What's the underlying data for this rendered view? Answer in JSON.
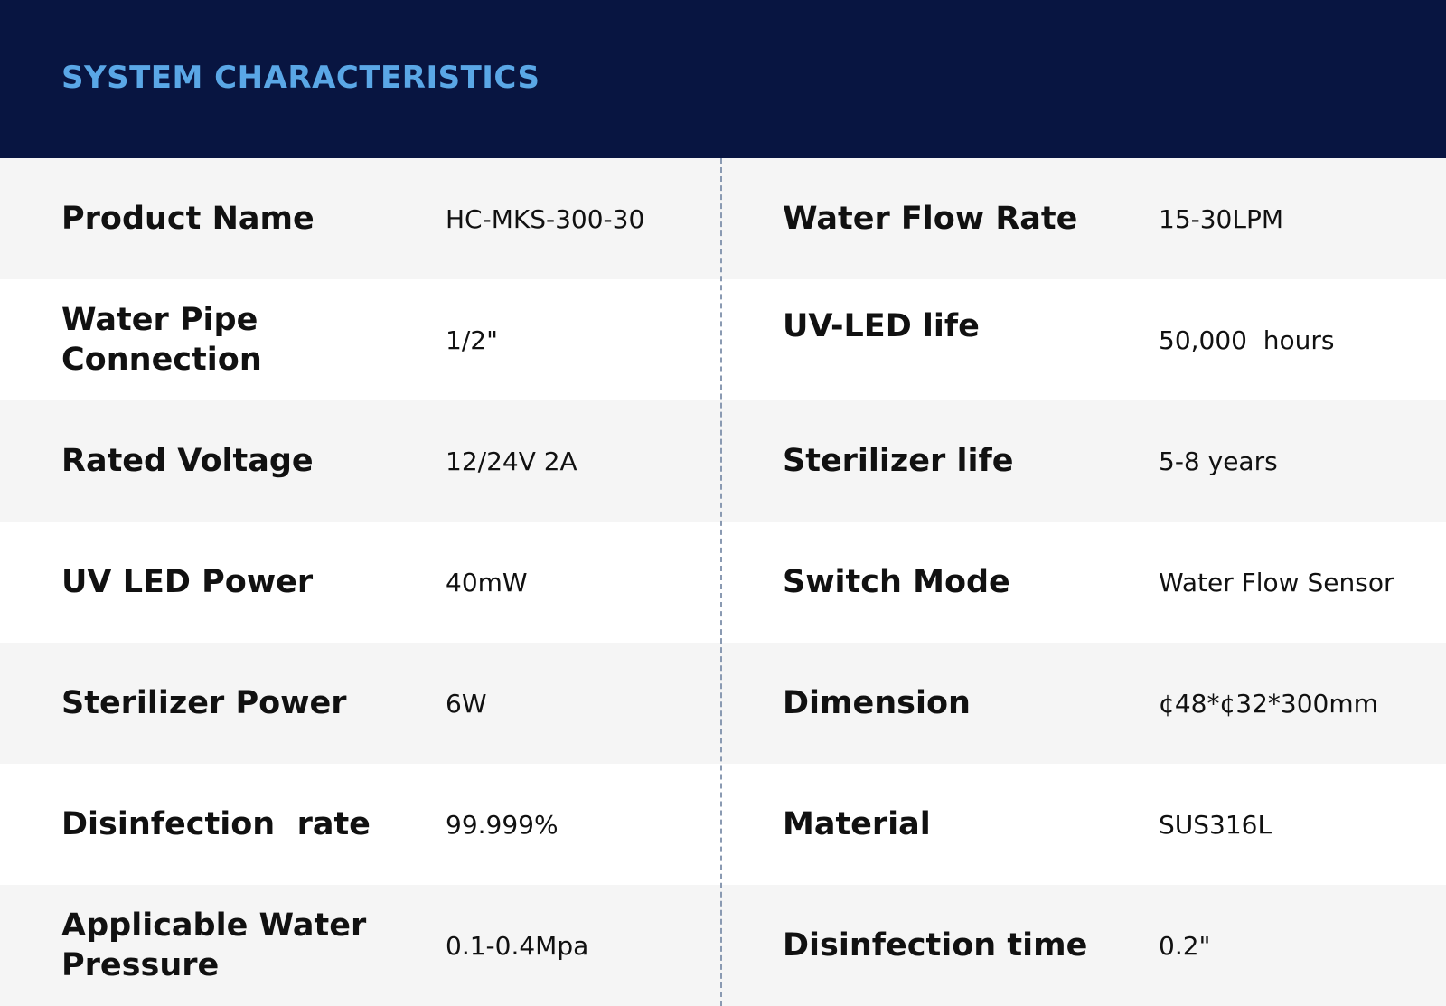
{
  "header": {
    "title": "SYSTEM CHARACTERISTICS"
  },
  "specs": [
    {
      "left_label": "Product Name",
      "left_value": "HC-MKS-300-30",
      "right_label": "Water Flow Rate",
      "right_value": "15-30LPM"
    },
    {
      "left_label": "Water Pipe\nConnection",
      "left_value": "1/2\"",
      "right_label": "UV-LED life",
      "right_value": "50,000  hours"
    },
    {
      "left_label": "Rated Voltage",
      "left_value": "12/24V 2A",
      "right_label": "Sterilizer life",
      "right_value": "5-8 years"
    },
    {
      "left_label": "UV LED Power",
      "left_value": "40mW",
      "right_label": "Switch Mode",
      "right_value": "Water Flow Sensor"
    },
    {
      "left_label": "Sterilizer Power",
      "left_value": "6W",
      "right_label": "Dimension",
      "right_value": "¢48*¢32*300mm"
    },
    {
      "left_label": "Disinfection  rate",
      "left_value": "99.999%",
      "right_label": "Material",
      "right_value": "SUS316L"
    },
    {
      "left_label": "Applicable Water\nPressure",
      "left_value": "0.1-0.4Mpa",
      "right_label": "Disinfection time",
      "right_value": "0.2\""
    }
  ],
  "colors": {
    "header_bg": "#081541",
    "title": "#5aa7e6",
    "row_shaded": "#f5f5f5",
    "divider": "#8a9ab2"
  }
}
